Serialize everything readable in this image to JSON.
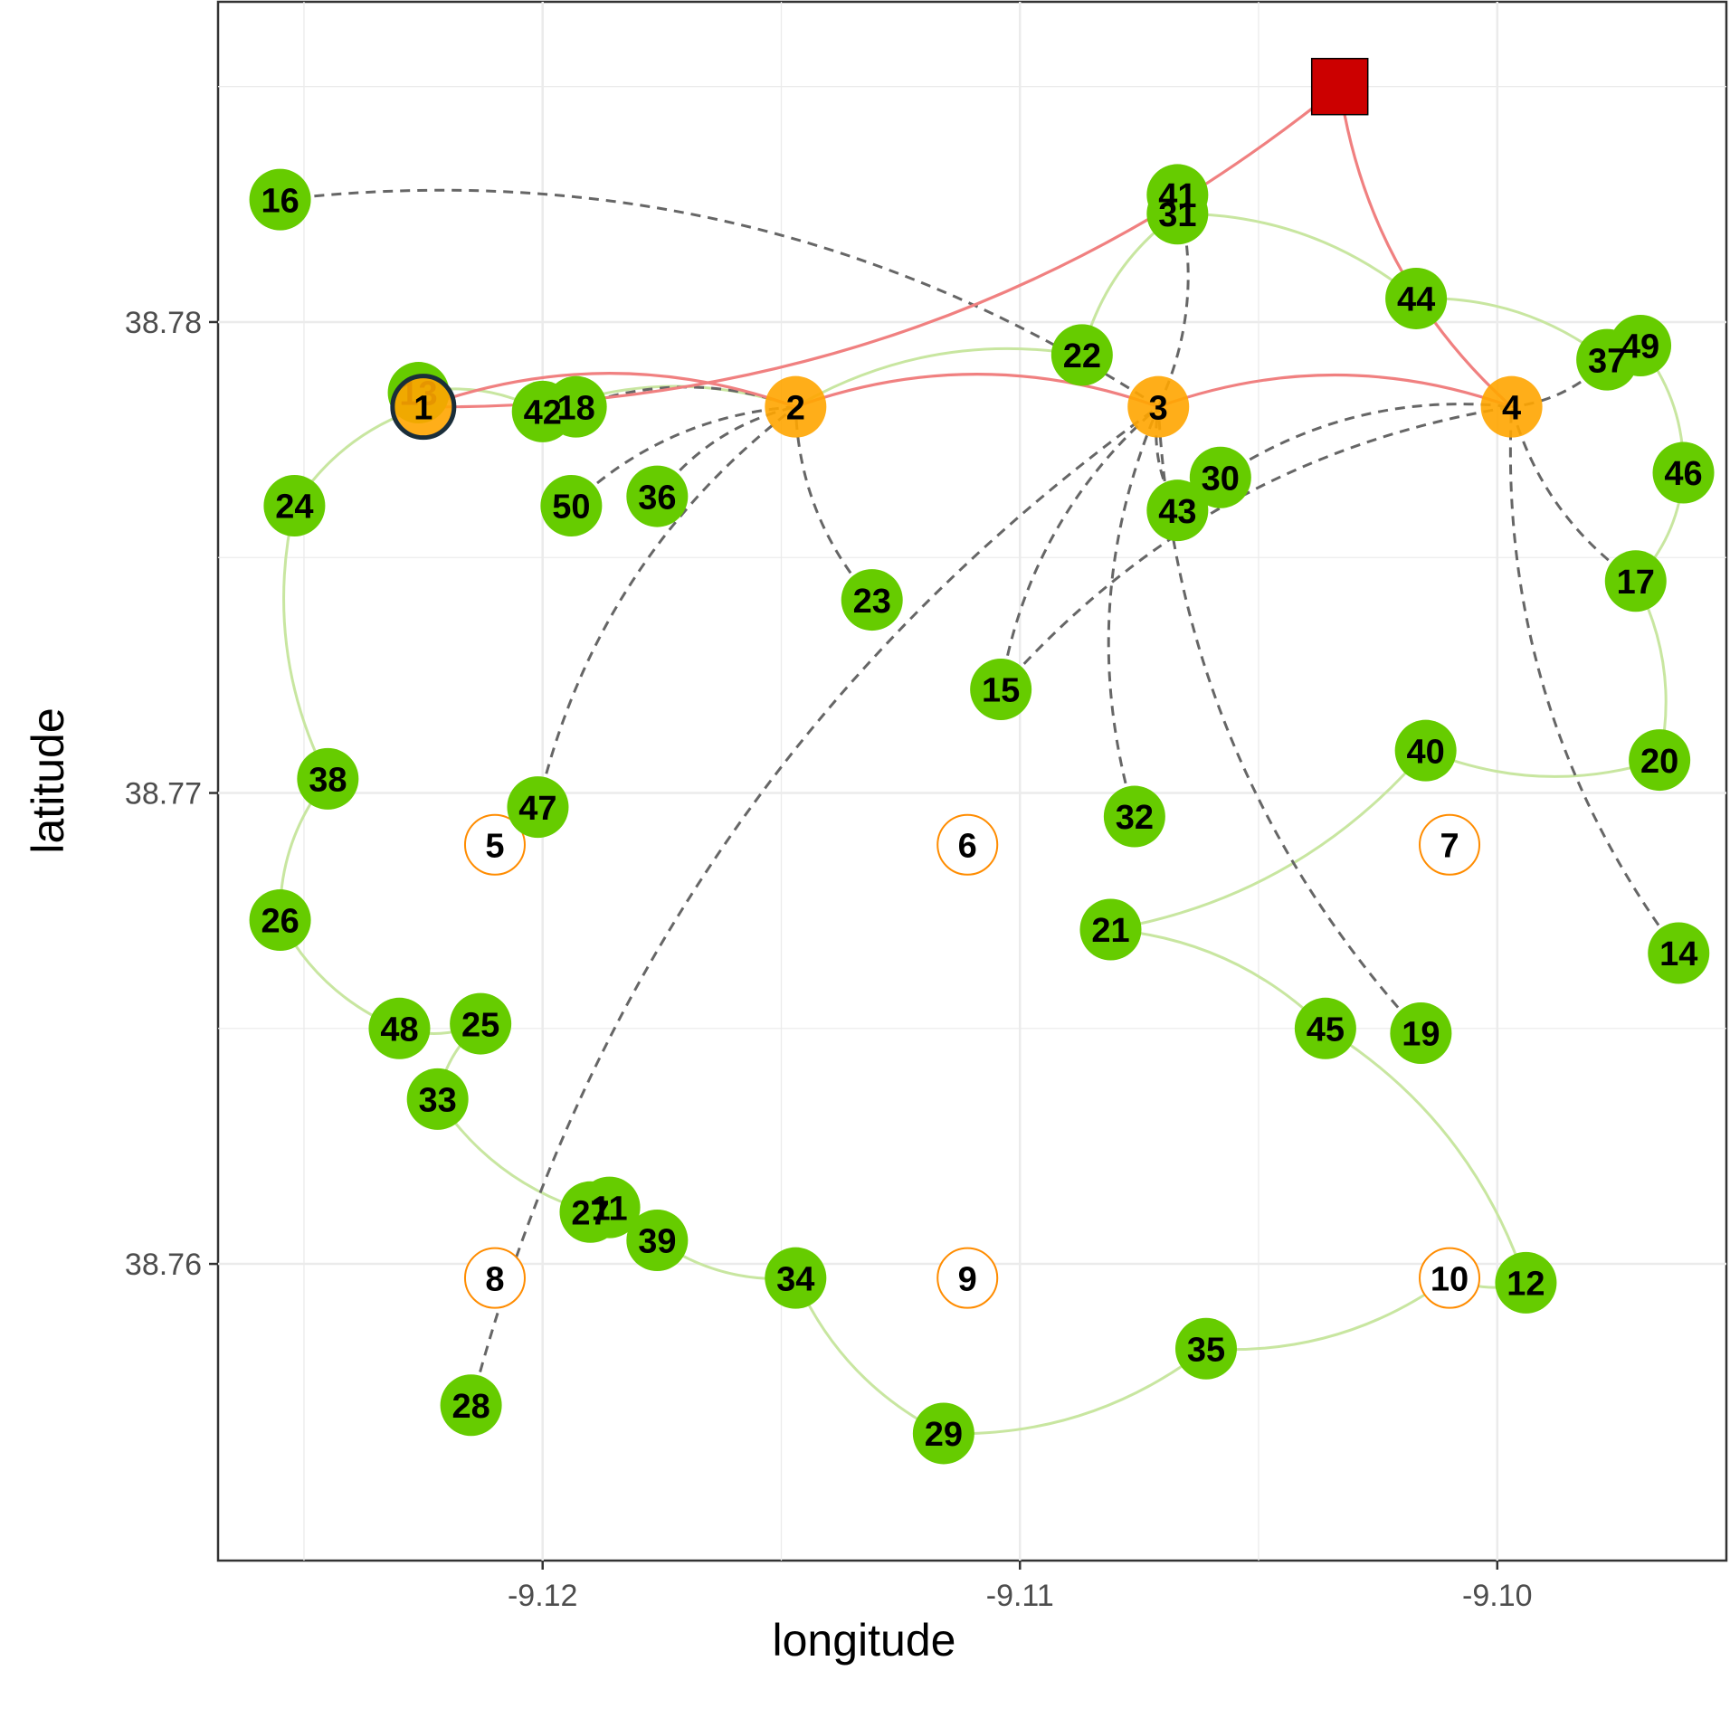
{
  "chart_data": {
    "type": "scatter",
    "title": "",
    "xlabel": "longitude",
    "ylabel": "latitude",
    "xlim": [
      -9.1268,
      -9.0952
    ],
    "ylim": [
      38.7537,
      38.7868
    ],
    "x_ticks": [
      -9.12,
      -9.11,
      -9.1
    ],
    "x_tick_labels": [
      "-9.12",
      "-9.11",
      "-9.10"
    ],
    "y_ticks": [
      38.76,
      38.77,
      38.78
    ],
    "y_tick_labels": [
      "38.76",
      "38.77",
      "38.78"
    ],
    "grid": true,
    "colors": {
      "customer": "#66cc00",
      "open_facility": "#ffa500",
      "closed_facility_border": "#ff8c00",
      "depot": "#cc0000",
      "main_route": "#f08080",
      "secondary_route": "#c8e6a0",
      "assignment": "#666666"
    },
    "depot": {
      "x": -9.1033,
      "y": 38.785
    },
    "open_facilities": [
      {
        "id": "1",
        "x": -9.1225,
        "y": 38.7782,
        "highlighted": true
      },
      {
        "id": "2",
        "x": -9.1147,
        "y": 38.7782
      },
      {
        "id": "3",
        "x": -9.1071,
        "y": 38.7782
      },
      {
        "id": "4",
        "x": -9.0997,
        "y": 38.7782
      }
    ],
    "closed_facilities": [
      {
        "id": "5",
        "x": -9.121,
        "y": 38.7689
      },
      {
        "id": "6",
        "x": -9.1111,
        "y": 38.7689
      },
      {
        "id": "7",
        "x": -9.101,
        "y": 38.7689
      },
      {
        "id": "8",
        "x": -9.121,
        "y": 38.7597
      },
      {
        "id": "9",
        "x": -9.1111,
        "y": 38.7597
      },
      {
        "id": "10",
        "x": -9.101,
        "y": 38.7597
      }
    ],
    "customers": [
      {
        "id": "11",
        "x": -9.1186,
        "y": 38.7612
      },
      {
        "id": "12",
        "x": -9.0994,
        "y": 38.7596
      },
      {
        "id": "13",
        "x": -9.1226,
        "y": 38.7785
      },
      {
        "id": "14",
        "x": -9.0962,
        "y": 38.7666
      },
      {
        "id": "15",
        "x": -9.1104,
        "y": 38.7722
      },
      {
        "id": "16",
        "x": -9.1255,
        "y": 38.7826
      },
      {
        "id": "17",
        "x": -9.0971,
        "y": 38.7745
      },
      {
        "id": "18",
        "x": -9.1193,
        "y": 38.7782
      },
      {
        "id": "19",
        "x": -9.1016,
        "y": 38.7649
      },
      {
        "id": "20",
        "x": -9.0966,
        "y": 38.7707
      },
      {
        "id": "21",
        "x": -9.1081,
        "y": 38.7671
      },
      {
        "id": "22",
        "x": -9.1087,
        "y": 38.7793
      },
      {
        "id": "23",
        "x": -9.1131,
        "y": 38.7741
      },
      {
        "id": "24",
        "x": -9.1252,
        "y": 38.7761
      },
      {
        "id": "25",
        "x": -9.1213,
        "y": 38.7651
      },
      {
        "id": "26",
        "x": -9.1255,
        "y": 38.7673
      },
      {
        "id": "27",
        "x": -9.119,
        "y": 38.7611
      },
      {
        "id": "28",
        "x": -9.1215,
        "y": 38.757
      },
      {
        "id": "29",
        "x": -9.1116,
        "y": 38.7564
      },
      {
        "id": "30",
        "x": -9.1058,
        "y": 38.7767
      },
      {
        "id": "31",
        "x": -9.1067,
        "y": 38.7823
      },
      {
        "id": "32",
        "x": -9.1076,
        "y": 38.7695
      },
      {
        "id": "33",
        "x": -9.1222,
        "y": 38.7635
      },
      {
        "id": "34",
        "x": -9.1147,
        "y": 38.7597
      },
      {
        "id": "35",
        "x": -9.1061,
        "y": 38.7582
      },
      {
        "id": "36",
        "x": -9.1176,
        "y": 38.7763
      },
      {
        "id": "37",
        "x": -9.0977,
        "y": 38.7792
      },
      {
        "id": "38",
        "x": -9.1245,
        "y": 38.7703
      },
      {
        "id": "39",
        "x": -9.1176,
        "y": 38.7605
      },
      {
        "id": "40",
        "x": -9.1015,
        "y": 38.7709
      },
      {
        "id": "41",
        "x": -9.1067,
        "y": 38.7827
      },
      {
        "id": "42",
        "x": -9.12,
        "y": 38.7781
      },
      {
        "id": "43",
        "x": -9.1067,
        "y": 38.776
      },
      {
        "id": "44",
        "x": -9.1017,
        "y": 38.7805
      },
      {
        "id": "45",
        "x": -9.1036,
        "y": 38.765
      },
      {
        "id": "46",
        "x": -9.0961,
        "y": 38.7768
      },
      {
        "id": "47",
        "x": -9.1201,
        "y": 38.7697
      },
      {
        "id": "48",
        "x": -9.123,
        "y": 38.765
      },
      {
        "id": "49",
        "x": -9.097,
        "y": 38.7795
      },
      {
        "id": "50",
        "x": -9.1194,
        "y": 38.7761
      }
    ],
    "main_route": [
      "depot",
      "1",
      "2",
      "3",
      "4",
      "depot"
    ],
    "secondary_routes": [
      [
        "1",
        "24",
        "38",
        "26",
        "48",
        "25",
        "33",
        "27",
        "11",
        "39",
        "34",
        "29",
        "35",
        "10",
        "12",
        "45",
        "21",
        "40",
        "20",
        "17",
        "46",
        "49",
        "37",
        "44",
        "31",
        "22",
        "2",
        "42",
        "13",
        "1"
      ]
    ],
    "assignments": [
      {
        "from": "16",
        "to": "3"
      },
      {
        "from": "18",
        "to": "2"
      },
      {
        "from": "50",
        "to": "2"
      },
      {
        "from": "36",
        "to": "2"
      },
      {
        "from": "47",
        "to": "2"
      },
      {
        "from": "23",
        "to": "2"
      },
      {
        "from": "41",
        "to": "3"
      },
      {
        "from": "43",
        "to": "3"
      },
      {
        "from": "32",
        "to": "3"
      },
      {
        "from": "19",
        "to": "3"
      },
      {
        "from": "15",
        "to": "3"
      },
      {
        "from": "28",
        "to": "3"
      },
      {
        "from": "30",
        "to": "4"
      },
      {
        "from": "17",
        "to": "4"
      },
      {
        "from": "14",
        "to": "4"
      },
      {
        "from": "15",
        "to": "4"
      },
      {
        "from": "37",
        "to": "4"
      }
    ]
  }
}
